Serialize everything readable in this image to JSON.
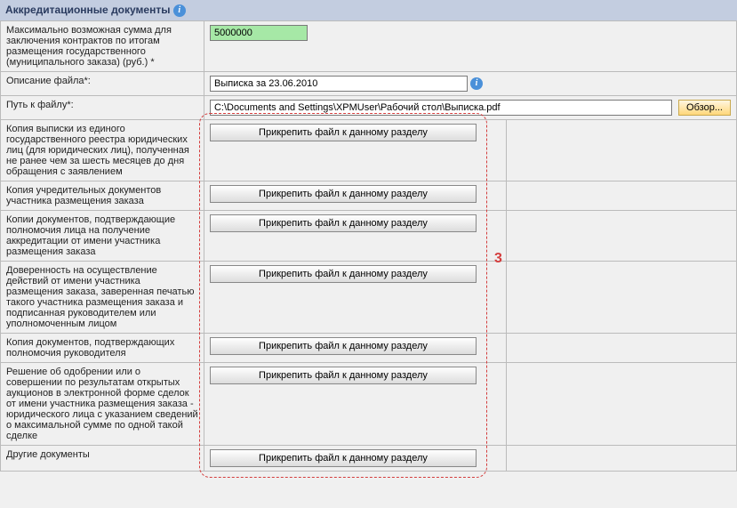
{
  "header": {
    "title": "Аккредитационные документы"
  },
  "sum_row": {
    "label": "Максимально возможная сумма для заключения контрактов по итогам размещения государственного (муниципального заказа) (руб.) *",
    "value": "5000000"
  },
  "desc_row": {
    "label": "Описание файла*:",
    "value": "Выписка за 23.06.2010"
  },
  "path_row": {
    "label": "Путь к файлу*:",
    "value": "C:\\Documents and Settings\\XPMUser\\Рабочий стол\\Выписка.pdf",
    "browse": "Обзор..."
  },
  "attach_label": "Прикрепить файл к данному разделу",
  "rows": [
    {
      "label": "Копия выписки из единого государственного реестра юридических лиц (для юридических лиц), полученная не ранее чем за шесть месяцев до дня обращения с заявлением"
    },
    {
      "label": "Копия учредительных документов участника размещения заказа"
    },
    {
      "label": "Копии документов, подтверждающие полномочия лица на получение аккредитации от имени участника размещения заказа"
    },
    {
      "label": "Доверенность на осуществление действий от имени участника размещения заказа, заверенная печатью такого участника размещения заказа и подписанная руководителем или уполномоченным лицом"
    },
    {
      "label": "Копия документов, подтверждающих полномочия руководителя"
    },
    {
      "label": "Решение об одобрении или о совершении по результатам открытых аукционов в электронной форме сделок от имени участника размещения заказа - юридического лица с указанием сведений о максимальной сумме по одной такой сделке"
    },
    {
      "label": "Другие документы"
    }
  ],
  "annotation": {
    "number": "3"
  },
  "colors": {
    "header_bg": "#c3cde0",
    "green_input": "#a6e8a6",
    "red": "#d43d3d"
  }
}
